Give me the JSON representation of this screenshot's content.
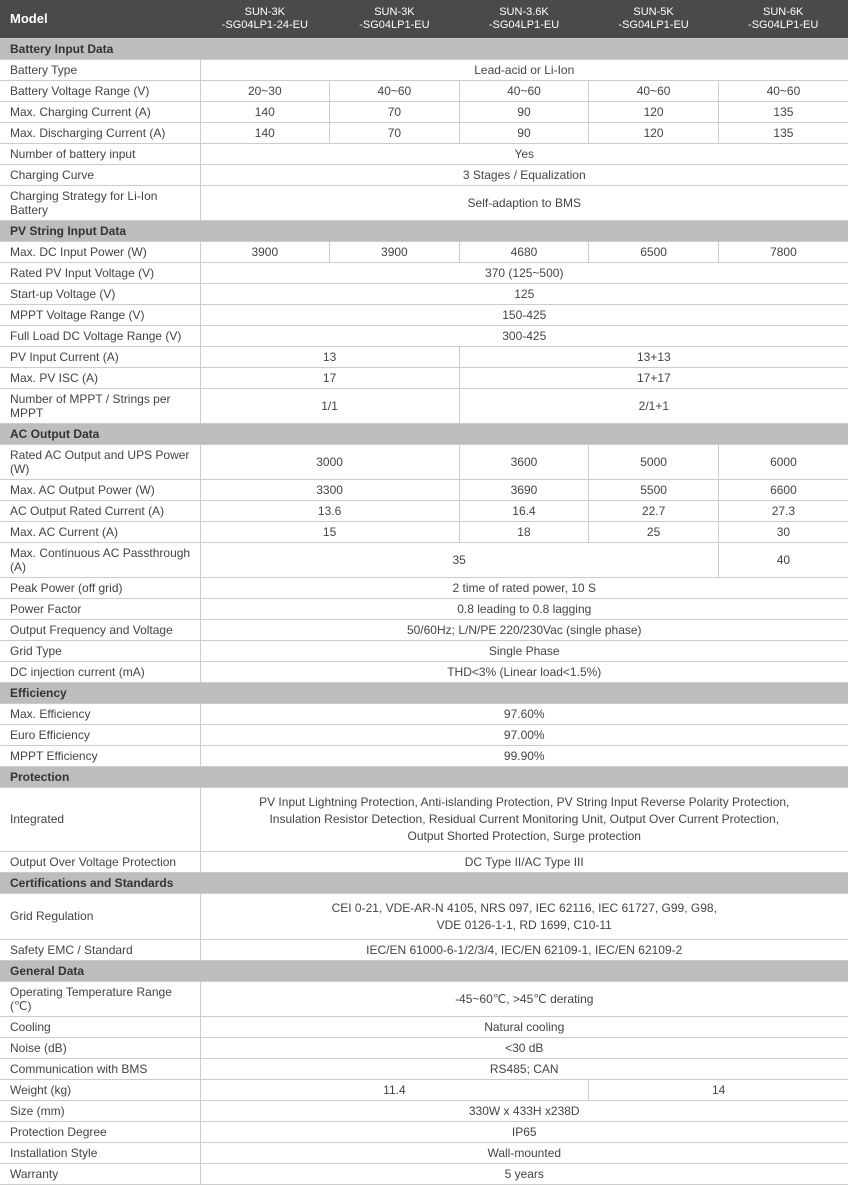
{
  "columns": [
    "Model",
    "SUN-3K\n-SG04LP1-24-EU",
    "SUN-3K\n-SG04LP1-EU",
    "SUN-3.6K\n-SG04LP1-EU",
    "SUN-5K\n-SG04LP1-EU",
    "SUN-6K\n-SG04LP1-EU"
  ],
  "sections": [
    {
      "title": "Battery Input Data",
      "rows": [
        {
          "label": "Battery Type",
          "span": "Lead-acid or Li-Ion"
        },
        {
          "label": "Battery Voltage Range (V)",
          "cells": [
            "20~30",
            "40~60",
            "40~60",
            "40~60",
            "40~60"
          ]
        },
        {
          "label": "Max. Charging Current (A)",
          "cells": [
            "140",
            "70",
            "90",
            "120",
            "135"
          ]
        },
        {
          "label": "Max. Discharging Current (A)",
          "cells": [
            "140",
            "70",
            "90",
            "120",
            "135"
          ]
        },
        {
          "label": "Number of battery input",
          "span": "Yes"
        },
        {
          "label": "Charging Curve",
          "span": "3 Stages / Equalization"
        },
        {
          "label": "Charging Strategy for Li-Ion Battery",
          "span": "Self-adaption to BMS"
        }
      ]
    },
    {
      "title": "PV String Input Data",
      "rows": [
        {
          "label": "Max. DC Input Power (W)",
          "cells": [
            "3900",
            "3900",
            "4680",
            "6500",
            "7800"
          ]
        },
        {
          "label": "Rated PV Input Voltage (V)",
          "span": "370 (125~500)"
        },
        {
          "label": "Start-up Voltage (V)",
          "span": "125"
        },
        {
          "label": "MPPT Voltage Range (V)",
          "span": "150-425"
        },
        {
          "label": "Full Load DC Voltage Range (V)",
          "span": "300-425"
        },
        {
          "label": "PV Input Current (A)",
          "groups": [
            {
              "text": "13",
              "span": 2
            },
            {
              "text": "13+13",
              "span": 3
            }
          ]
        },
        {
          "label": "Max. PV ISC (A)",
          "groups": [
            {
              "text": "17",
              "span": 2
            },
            {
              "text": "17+17",
              "span": 3
            }
          ]
        },
        {
          "label": "Number of MPPT / Strings per MPPT",
          "groups": [
            {
              "text": "1/1",
              "span": 2
            },
            {
              "text": "2/1+1",
              "span": 3
            }
          ]
        }
      ]
    },
    {
      "title": "AC Output Data",
      "rows": [
        {
          "label": "Rated AC Output and UPS Power (W)",
          "groups": [
            {
              "text": "3000",
              "span": 2
            },
            {
              "text": "3600",
              "span": 1
            },
            {
              "text": "5000",
              "span": 1
            },
            {
              "text": "6000",
              "span": 1
            }
          ]
        },
        {
          "label": "Max. AC Output Power (W)",
          "groups": [
            {
              "text": "3300",
              "span": 2
            },
            {
              "text": "3690",
              "span": 1
            },
            {
              "text": "5500",
              "span": 1
            },
            {
              "text": "6600",
              "span": 1
            }
          ]
        },
        {
          "label": "AC Output Rated Current (A)",
          "groups": [
            {
              "text": "13.6",
              "span": 2
            },
            {
              "text": "16.4",
              "span": 1
            },
            {
              "text": "22.7",
              "span": 1
            },
            {
              "text": "27.3",
              "span": 1
            }
          ]
        },
        {
          "label": "Max. AC Current (A)",
          "groups": [
            {
              "text": "15",
              "span": 2
            },
            {
              "text": "18",
              "span": 1
            },
            {
              "text": "25",
              "span": 1
            },
            {
              "text": "30",
              "span": 1
            }
          ]
        },
        {
          "label": "Max. Continuous AC Passthrough (A)",
          "groups": [
            {
              "text": "35",
              "span": 4
            },
            {
              "text": "40",
              "span": 1
            }
          ]
        },
        {
          "label": "Peak Power (off grid)",
          "span": "2 time of rated power, 10 S"
        },
        {
          "label": "Power Factor",
          "span": "0.8 leading to 0.8 lagging"
        },
        {
          "label": "Output Frequency and Voltage",
          "span": "50/60Hz; L/N/PE  220/230Vac (single phase)"
        },
        {
          "label": "Grid Type",
          "span": "Single Phase"
        },
        {
          "label": "DC injection current (mA)",
          "span": "THD<3% (Linear load<1.5%)"
        }
      ]
    },
    {
      "title": "Efficiency",
      "rows": [
        {
          "label": "Max. Efficiency",
          "span": "97.60%"
        },
        {
          "label": "Euro Efficiency",
          "span": "97.00%"
        },
        {
          "label": "MPPT Efficiency",
          "span": "99.90%"
        }
      ]
    },
    {
      "title": "Protection",
      "rows": [
        {
          "label": "Integrated",
          "tall": true,
          "span": "PV Input Lightning Protection, Anti-islanding Protection, PV String Input Reverse Polarity Protection,\nInsulation Resistor Detection, Residual Current Monitoring Unit, Output Over Current Protection,\nOutput Shorted Protection, Surge protection"
        },
        {
          "label": "Output Over Voltage Protection",
          "span": "DC Type II/AC Type III"
        }
      ]
    },
    {
      "title": "Certifications and Standards",
      "rows": [
        {
          "label": "Grid Regulation",
          "tall": true,
          "span": "CEI 0-21, VDE-AR-N 4105, NRS 097, IEC 62116, IEC 61727, G99, G98,\nVDE 0126-1-1, RD 1699, C10-11"
        },
        {
          "label": "Safety EMC / Standard",
          "span": "IEC/EN 61000-6-1/2/3/4, IEC/EN 62109-1, IEC/EN 62109-2"
        }
      ]
    },
    {
      "title": "General Data",
      "rows": [
        {
          "label": "Operating Temperature Range (℃)",
          "span": "-45~60℃, >45℃ derating"
        },
        {
          "label": "Cooling",
          "span": "Natural cooling"
        },
        {
          "label": "Noise (dB)",
          "span": "<30 dB"
        },
        {
          "label": "Communication with BMS",
          "span": "RS485; CAN"
        },
        {
          "label": "Weight (kg)",
          "groups": [
            {
              "text": "11.4",
              "span": 3
            },
            {
              "text": "14",
              "span": 2
            }
          ]
        },
        {
          "label": "Size (mm)",
          "span": "330W x 433H x238D"
        },
        {
          "label": "Protection Degree",
          "span": "IP65"
        },
        {
          "label": "Installation Style",
          "span": "Wall-mounted"
        },
        {
          "label": "Warranty",
          "span": "5 years"
        }
      ]
    }
  ]
}
